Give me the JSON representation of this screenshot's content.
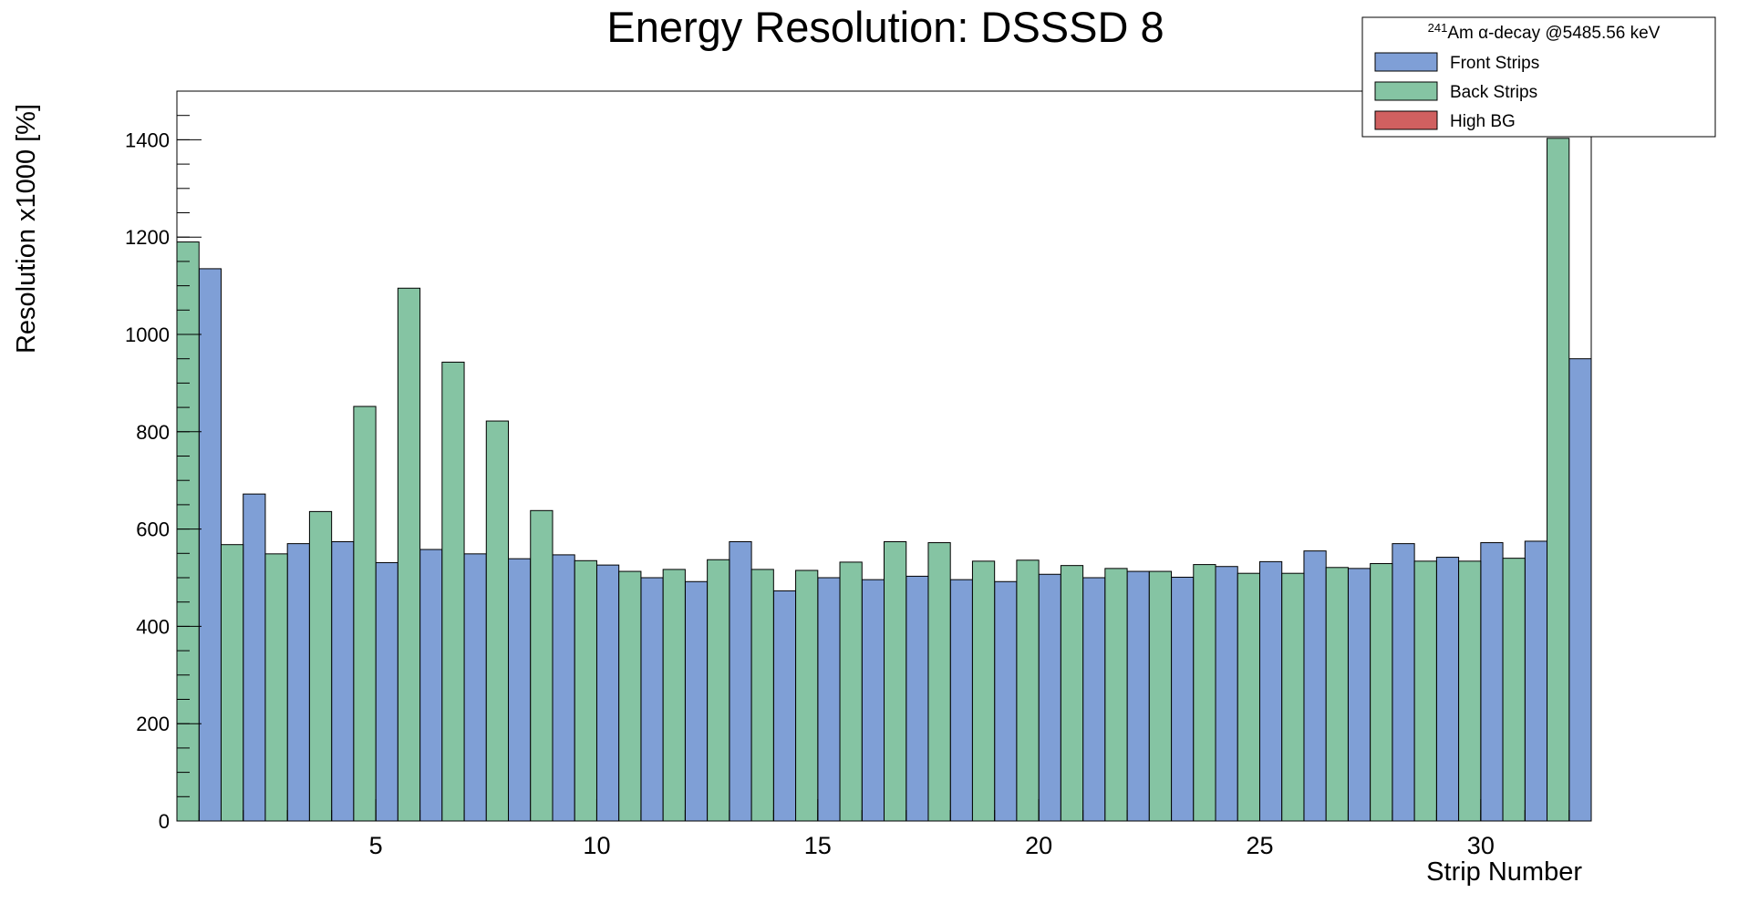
{
  "chart_data": {
    "type": "bar",
    "title": "Energy Resolution: DSSSD 8",
    "x_label": "Strip Number",
    "y_label": "Resolution x1000 [%]",
    "legend_title_superscript": "241",
    "legend_title": "Am α-decay @5485.56 keV",
    "legend_position": "upper right",
    "x": [
      1,
      2,
      3,
      4,
      5,
      6,
      7,
      8,
      9,
      10,
      11,
      12,
      13,
      14,
      15,
      16,
      17,
      18,
      19,
      20,
      21,
      22,
      23,
      24,
      25,
      26,
      27,
      28,
      29,
      30,
      31,
      32
    ],
    "series": [
      {
        "name": "Front Strips",
        "color": "#7f9fd6",
        "offset": "right",
        "values": [
          1135,
          672,
          570,
          574,
          531,
          558,
          549,
          539,
          547,
          526,
          500,
          492,
          574,
          473,
          500,
          496,
          503,
          496,
          492,
          507,
          500,
          513,
          501,
          523,
          533,
          555,
          519,
          570,
          542,
          572,
          575,
          950
        ]
      },
      {
        "name": "Back Strips",
        "color": "#85c4a3",
        "offset": "left",
        "values": [
          1190,
          568,
          549,
          636,
          852,
          1095,
          943,
          822,
          638,
          535,
          513,
          517,
          537,
          517,
          515,
          532,
          574,
          572,
          534,
          536,
          525,
          519,
          513,
          527,
          509,
          509,
          521,
          529,
          534,
          534,
          540,
          1403
        ]
      },
      {
        "name": "High BG",
        "color": "#d06060",
        "offset": "none",
        "values": [
          null,
          null,
          null,
          null,
          null,
          null,
          null,
          null,
          null,
          null,
          null,
          null,
          null,
          null,
          null,
          null,
          null,
          null,
          null,
          null,
          null,
          null,
          null,
          null,
          null,
          null,
          null,
          null,
          null,
          null,
          null,
          null
        ]
      }
    ],
    "xlim": [
      0.5,
      32.5
    ],
    "xticks": [
      5,
      10,
      15,
      20,
      25,
      30
    ],
    "ylim": [
      0,
      1500
    ],
    "yticks": [
      0,
      200,
      400,
      600,
      800,
      1000,
      1200,
      1400
    ]
  }
}
